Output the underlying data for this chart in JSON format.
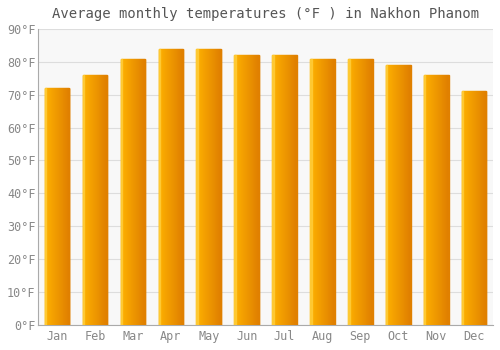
{
  "title": "Average monthly temperatures (°F ) in Nakhon Phanom",
  "months": [
    "Jan",
    "Feb",
    "Mar",
    "Apr",
    "May",
    "Jun",
    "Jul",
    "Aug",
    "Sep",
    "Oct",
    "Nov",
    "Dec"
  ],
  "values": [
    72,
    76,
    81,
    84,
    84,
    82,
    82,
    81,
    81,
    79,
    76,
    71
  ],
  "bar_color_left": "#FFB300",
  "bar_color_right": "#E08000",
  "background_color": "#FFFFFF",
  "plot_bg_color": "#F8F8F8",
  "grid_color": "#DDDDDD",
  "ylim": [
    0,
    90
  ],
  "yticks": [
    0,
    10,
    20,
    30,
    40,
    50,
    60,
    70,
    80,
    90
  ],
  "title_fontsize": 10,
  "tick_fontsize": 8.5,
  "tick_color": "#888888",
  "figsize": [
    5.0,
    3.5
  ],
  "dpi": 100
}
